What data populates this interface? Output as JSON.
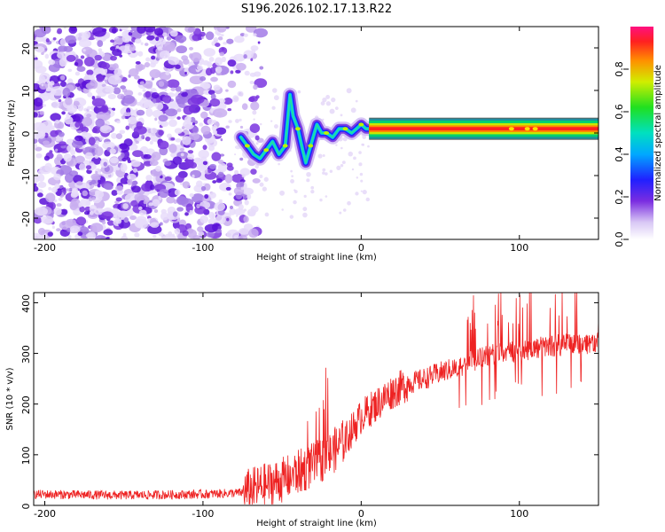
{
  "title": "S196.2026.102.17.13.R22",
  "chart_data": [
    {
      "type": "heatmap",
      "xlabel": "Height of straight line (km)",
      "ylabel": "Frequency (Hz)",
      "xlim": [
        -207,
        150
      ],
      "ylim": [
        -25,
        25
      ],
      "xticks": [
        -200,
        -100,
        0,
        100
      ],
      "yticks": [
        -20,
        -10,
        0,
        10,
        20
      ],
      "colorbar": {
        "label": "Normalized spectral amplitude",
        "range": [
          0,
          1
        ],
        "ticks": [
          "0.0",
          "0.2",
          "0.4",
          "0.6",
          "0.8"
        ]
      },
      "features": {
        "noise_region_km": [
          -207,
          -75
        ],
        "signal_start_km": -78,
        "carrier_frequency_hz": 1,
        "carrier_start_km": 5,
        "track_points": [
          [
            -76,
            -1
          ],
          [
            -72,
            -3
          ],
          [
            -68,
            -5
          ],
          [
            -64,
            -6
          ],
          [
            -60,
            -4
          ],
          [
            -56,
            -2
          ],
          [
            -52,
            -5
          ],
          [
            -48,
            -3
          ],
          [
            -45,
            9
          ],
          [
            -43,
            4
          ],
          [
            -40,
            1
          ],
          [
            -37,
            -4
          ],
          [
            -35,
            -7
          ],
          [
            -32,
            -3
          ],
          [
            -28,
            2
          ],
          [
            -25,
            0
          ],
          [
            -22,
            0
          ],
          [
            -18,
            -1
          ],
          [
            -14,
            1
          ],
          [
            -10,
            1
          ],
          [
            -6,
            0
          ],
          [
            -3,
            1
          ],
          [
            0,
            2
          ],
          [
            3,
            1
          ],
          [
            6,
            1
          ]
        ]
      }
    },
    {
      "type": "line",
      "xlabel": "Height of straight line (km)",
      "ylabel": "SNR (10 * v/v)",
      "xlim": [
        -207,
        150
      ],
      "ylim": [
        0,
        420
      ],
      "xticks": [
        -200,
        -100,
        0,
        100
      ],
      "yticks": [
        0,
        100,
        200,
        300,
        400
      ],
      "series": [
        {
          "name": "SNR",
          "color": "#ee2222",
          "trend_x": [
            -207,
            -150,
            -100,
            -75,
            -60,
            -50,
            -40,
            -30,
            -20,
            -10,
            0,
            10,
            20,
            30,
            40,
            50,
            60,
            70,
            80,
            90,
            100,
            110,
            120,
            130,
            140,
            150
          ],
          "trend_y": [
            22,
            20,
            22,
            25,
            40,
            50,
            65,
            80,
            100,
            130,
            175,
            200,
            225,
            240,
            250,
            262,
            272,
            285,
            295,
            300,
            305,
            310,
            315,
            318,
            320,
            322
          ]
        }
      ]
    }
  ]
}
